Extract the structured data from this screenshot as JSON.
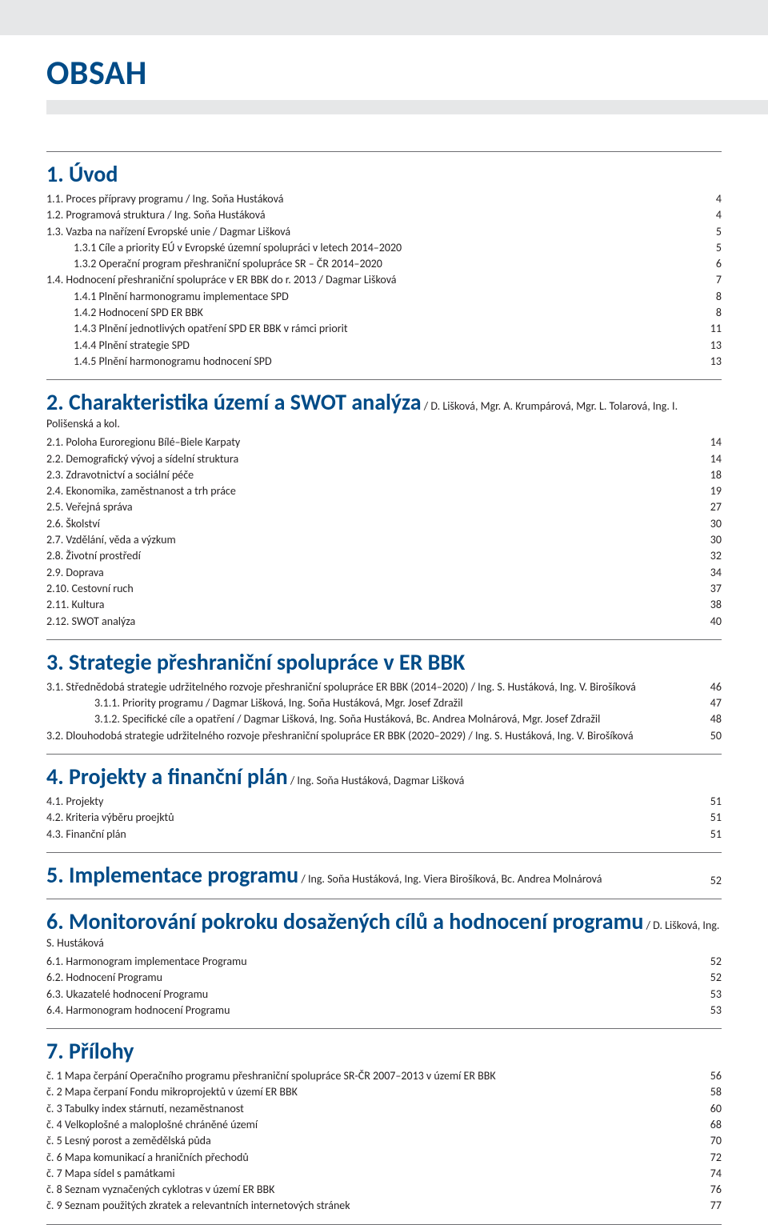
{
  "colors": {
    "brand_blue": "#004b87",
    "light_grey": "#e6e7e8",
    "rule": "#6d6e71",
    "text": "#231f20",
    "background": "#ffffff"
  },
  "typography": {
    "title_size_pt": 42,
    "section_heading_size_pt": 28,
    "body_size_pt": 14,
    "font_family": "Myriad Pro / sans-serif"
  },
  "page": {
    "title": "OBSAH"
  },
  "sections": [
    {
      "num": "1.",
      "title": "Úvod",
      "authors": "",
      "page_inline": "",
      "items": [
        {
          "indent": 1,
          "text": "1.1.   Proces přípravy programu / Ing. Soňa Hustáková",
          "page": "4"
        },
        {
          "indent": 1,
          "text": "1.2.   Programová struktura / Ing. Soňa Hustáková",
          "page": "4"
        },
        {
          "indent": 1,
          "text": "1.3.   Vazba na nařízení Evropské unie / Dagmar Lišková",
          "page": "5"
        },
        {
          "indent": 2,
          "text": "1.3.1  Cíle a priority EÚ v Evropské územní spolupráci v letech 2014–2020",
          "page": "5"
        },
        {
          "indent": 2,
          "text": "1.3.2  Operační program přeshraniční spolupráce SR – ČR 2014–2020",
          "page": "6"
        },
        {
          "indent": 1,
          "text": "1.4.   Hodnocení přeshraniční spolupráce v ER BBK do r. 2013 / Dagmar Lišková",
          "page": "7"
        },
        {
          "indent": 2,
          "text": "1.4.1  Plnění harmonogramu implementace SPD",
          "page": "8"
        },
        {
          "indent": 2,
          "text": "1.4.2  Hodnocení SPD ER BBK",
          "page": "8"
        },
        {
          "indent": 2,
          "text": "1.4.3  Plnění jednotlivých opatření SPD ER BBK v rámci priorit",
          "page": "11"
        },
        {
          "indent": 2,
          "text": "1.4.4  Plnění strategie SPD",
          "page": "13"
        },
        {
          "indent": 2,
          "text": "1.4.5  Plnění harmonogramu hodnocení SPD",
          "page": "13"
        }
      ]
    },
    {
      "num": "2.",
      "title": "Charakteristika území a SWOT analýza",
      "authors": " / D. Lišková, Mgr. A. Krumpárová, Mgr. L. Tolarová, Ing. I. Polišenská a kol.",
      "page_inline": "",
      "items": [
        {
          "indent": 1,
          "text": "2.1.   Poloha Euroregionu Bílé–Biele Karpaty",
          "page": "14"
        },
        {
          "indent": 1,
          "text": "2.2.   Demografický vývoj a sídelní struktura",
          "page": "14"
        },
        {
          "indent": 1,
          "text": "2.3.   Zdravotnictví a sociální péče",
          "page": "18"
        },
        {
          "indent": 1,
          "text": "2.4.   Ekonomika, zaměstnanost a trh práce",
          "page": "19"
        },
        {
          "indent": 1,
          "text": "2.5.   Veřejná správa",
          "page": "27"
        },
        {
          "indent": 1,
          "text": "2.6.   Školství",
          "page": "30"
        },
        {
          "indent": 1,
          "text": "2.7.   Vzdělání, věda a výzkum",
          "page": "30"
        },
        {
          "indent": 1,
          "text": "2.8.   Životní prostředí",
          "page": "32"
        },
        {
          "indent": 1,
          "text": "2.9.   Doprava",
          "page": "34"
        },
        {
          "indent": 1,
          "text": "2.10. Cestovní ruch",
          "page": "37"
        },
        {
          "indent": 1,
          "text": "2.11. Kultura",
          "page": "38"
        },
        {
          "indent": 1,
          "text": "2.12. SWOT analýza",
          "page": "40"
        }
      ]
    },
    {
      "num": "3.",
      "title": "Strategie přeshraniční spolupráce v ER BBK",
      "authors": "",
      "page_inline": "",
      "items": [
        {
          "indent": 1,
          "text": "3.1.  Střednědobá strategie udržitelného rozvoje přeshraniční spolupráce ER BBK (2014–2020) / Ing. S. Hustáková, Ing. V. Birošíková",
          "page": "46"
        },
        {
          "indent": 3,
          "text": "3.1.1.   Priority programu / Dagmar Lišková, Ing. Soňa Hustáková, Mgr. Josef Zdražil",
          "page": "47"
        },
        {
          "indent": 3,
          "text": "3.1.2.   Specifické cíle a opatření / Dagmar Lišková, Ing. Soňa Hustáková, Bc. Andrea Molnárová, Mgr. Josef Zdražil",
          "page": "48"
        },
        {
          "indent": 1,
          "text": "3.2. Dlouhodobá strategie udržitelného rozvoje přeshraniční  spolupráce ER BBK (2020–2029) / Ing. S. Hustáková, Ing. V. Birošíková",
          "page": "50"
        }
      ]
    },
    {
      "num": "4.",
      "title": "Projekty a finanční plán",
      "authors": " / Ing. Soňa Hustáková, Dagmar Lišková",
      "page_inline": "",
      "items": [
        {
          "indent": 1,
          "text": "4.1.   Projekty",
          "page": "51"
        },
        {
          "indent": 1,
          "text": "4.2.   Kriteria výběru proejktů",
          "page": "51"
        },
        {
          "indent": 1,
          "text": "4.3.   Finanční plán",
          "page": "51"
        }
      ]
    },
    {
      "num": "5.",
      "title": "Implementace programu",
      "authors": " / Ing. Soňa Hustáková, Ing. Viera Birošíková, Bc. Andrea Molnárová",
      "page_inline": "52",
      "items": []
    },
    {
      "num": "6.",
      "title": "Monitorování pokroku dosažených cílů a hodnocení programu",
      "authors": " / D. Lišková, Ing. S. Hustáková",
      "page_inline": "",
      "items": [
        {
          "indent": 1,
          "text": "6.1.   Harmonogram implementace Programu",
          "page": "52"
        },
        {
          "indent": 1,
          "text": "6.2.   Hodnocení Programu",
          "page": "52"
        },
        {
          "indent": 1,
          "text": "6.3.   Ukazatelé hodnocení Programu",
          "page": "53"
        },
        {
          "indent": 1,
          "text": "6.4.   Harmonogram hodnocení Programu",
          "page": "53"
        }
      ]
    },
    {
      "num": "7.",
      "title": "Přílohy",
      "authors": "",
      "page_inline": "",
      "items": [
        {
          "indent": 1,
          "text": "č. 1  Mapa čerpání Operačního programu přeshraniční spolupráce SR-ČR 2007–2013 v území ER BBK",
          "page": "56"
        },
        {
          "indent": 1,
          "text": "č. 2  Mapa čerpaní Fondu mikroprojektů v území ER BBK",
          "page": "58"
        },
        {
          "indent": 1,
          "text": "č. 3  Tabulky index stárnutí, nezaměstnanost",
          "page": "60"
        },
        {
          "indent": 1,
          "text": "č. 4  Velkoplošné a maloplošné chráněné území",
          "page": "68"
        },
        {
          "indent": 1,
          "text": "č. 5  Lesný porost a zemědělská půda",
          "page": "70"
        },
        {
          "indent": 1,
          "text": "č. 6  Mapa komunikací a hraničních přechodů",
          "page": "72"
        },
        {
          "indent": 1,
          "text": "č. 7  Mapa sídel s památkami",
          "page": "74"
        },
        {
          "indent": 1,
          "text": "č. 8  Seznam vyznačených cyklotras v území ER BBK",
          "page": "76"
        },
        {
          "indent": 1,
          "text": "č. 9  Seznam použitých zkratek a relevantních internetových stránek",
          "page": "77"
        }
      ]
    }
  ]
}
